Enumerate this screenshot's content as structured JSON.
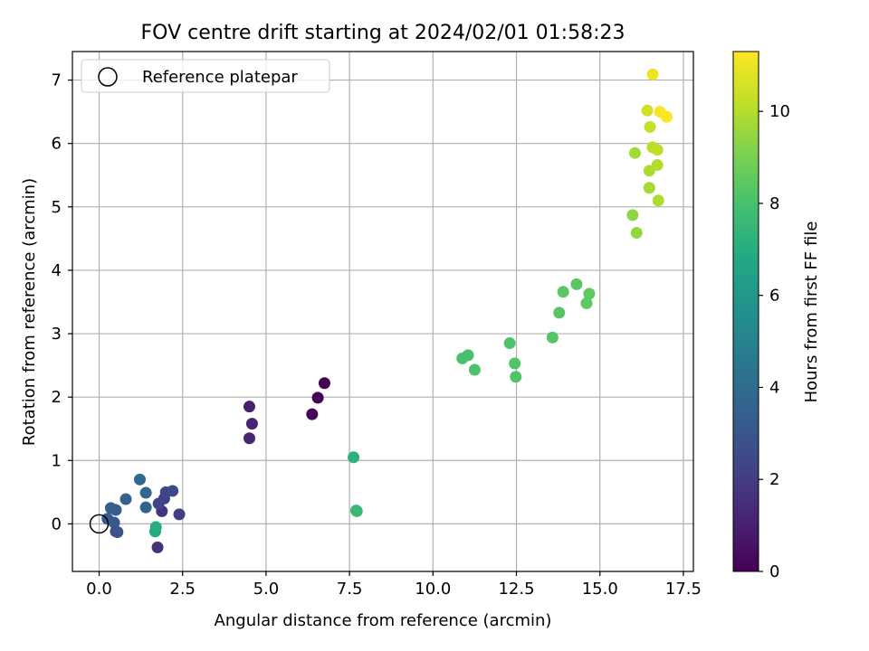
{
  "chart_data": {
    "type": "scatter",
    "title": "FOV centre drift starting at 2024/02/01 01:58:23",
    "xlabel": "Angular distance from reference (arcmin)",
    "ylabel": "Rotation from reference (arcmin)",
    "xlim": [
      -0.8,
      17.8
    ],
    "ylim": [
      -0.75,
      7.45
    ],
    "xticks": [
      0.0,
      2.5,
      5.0,
      7.5,
      10.0,
      12.5,
      15.0,
      17.5
    ],
    "xtick_labels": [
      "0.0",
      "2.5",
      "5.0",
      "7.5",
      "10.0",
      "12.5",
      "15.0",
      "17.5"
    ],
    "yticks": [
      0,
      1,
      2,
      3,
      4,
      5,
      6,
      7
    ],
    "ytick_labels": [
      "0",
      "1",
      "2",
      "3",
      "4",
      "5",
      "6",
      "7"
    ],
    "grid": true,
    "legend": {
      "placement": "top-left",
      "entries": [
        {
          "label": "Reference platepar",
          "marker": "hollow-circle"
        }
      ]
    },
    "reference_point": {
      "x": 0.0,
      "y": 0.0
    },
    "colorbar": {
      "label": "Hours from first FF file",
      "colormap": "viridis",
      "range": [
        0,
        11.3
      ],
      "ticks": [
        0,
        2,
        4,
        6,
        8,
        10
      ],
      "tick_labels": [
        "0",
        "2",
        "4",
        "6",
        "8",
        "10"
      ]
    },
    "points": [
      {
        "x": 6.75,
        "y": 2.22,
        "c": 0.0
      },
      {
        "x": 6.55,
        "y": 1.99,
        "c": 0.1
      },
      {
        "x": 6.38,
        "y": 1.73,
        "c": 0.2
      },
      {
        "x": 4.5,
        "y": 1.85,
        "c": 1.0
      },
      {
        "x": 4.58,
        "y": 1.58,
        "c": 1.1
      },
      {
        "x": 4.5,
        "y": 1.35,
        "c": 1.2
      },
      {
        "x": 1.75,
        "y": -0.37,
        "c": 1.6
      },
      {
        "x": 1.88,
        "y": 0.2,
        "c": 1.7
      },
      {
        "x": 2.4,
        "y": 0.15,
        "c": 2.0
      },
      {
        "x": 1.95,
        "y": 0.4,
        "c": 2.1
      },
      {
        "x": 1.78,
        "y": 0.32,
        "c": 2.3
      },
      {
        "x": 2.0,
        "y": 0.5,
        "c": 2.4
      },
      {
        "x": 2.2,
        "y": 0.52,
        "c": 2.5
      },
      {
        "x": 0.55,
        "y": -0.13,
        "c": 2.7
      },
      {
        "x": 0.5,
        "y": -0.12,
        "c": 2.9
      },
      {
        "x": 0.45,
        "y": 0.02,
        "c": 3.0
      },
      {
        "x": 0.25,
        "y": 0.08,
        "c": 3.2
      },
      {
        "x": 0.5,
        "y": 0.22,
        "c": 3.3
      },
      {
        "x": 0.35,
        "y": 0.25,
        "c": 3.4
      },
      {
        "x": 0.8,
        "y": 0.39,
        "c": 3.5
      },
      {
        "x": 1.4,
        "y": 0.26,
        "c": 3.6
      },
      {
        "x": 1.4,
        "y": 0.49,
        "c": 3.7
      },
      {
        "x": 1.22,
        "y": 0.7,
        "c": 3.9
      },
      {
        "x": 1.68,
        "y": -0.12,
        "c": 6.8
      },
      {
        "x": 1.7,
        "y": -0.05,
        "c": 7.0
      },
      {
        "x": 7.62,
        "y": 1.05,
        "c": 7.2
      },
      {
        "x": 7.7,
        "y": 0.21,
        "c": 7.4
      },
      {
        "x": 7.72,
        "y": 0.2,
        "c": 7.5
      },
      {
        "x": 10.88,
        "y": 2.61,
        "c": 8.0
      },
      {
        "x": 11.05,
        "y": 2.66,
        "c": 8.0
      },
      {
        "x": 11.25,
        "y": 2.43,
        "c": 8.1
      },
      {
        "x": 12.3,
        "y": 2.85,
        "c": 8.1
      },
      {
        "x": 12.45,
        "y": 2.53,
        "c": 8.2
      },
      {
        "x": 12.48,
        "y": 2.32,
        "c": 8.2
      },
      {
        "x": 13.58,
        "y": 2.94,
        "c": 8.3
      },
      {
        "x": 13.78,
        "y": 3.33,
        "c": 8.3
      },
      {
        "x": 13.9,
        "y": 3.66,
        "c": 8.4
      },
      {
        "x": 14.3,
        "y": 3.78,
        "c": 8.4
      },
      {
        "x": 14.6,
        "y": 3.48,
        "c": 8.5
      },
      {
        "x": 14.68,
        "y": 3.63,
        "c": 8.5
      },
      {
        "x": 15.98,
        "y": 4.87,
        "c": 9.4
      },
      {
        "x": 16.1,
        "y": 4.59,
        "c": 9.5
      },
      {
        "x": 16.05,
        "y": 5.85,
        "c": 9.7
      },
      {
        "x": 16.48,
        "y": 5.3,
        "c": 9.8
      },
      {
        "x": 16.48,
        "y": 5.57,
        "c": 9.9
      },
      {
        "x": 16.75,
        "y": 5.1,
        "c": 9.9
      },
      {
        "x": 16.72,
        "y": 5.66,
        "c": 10.0
      },
      {
        "x": 16.58,
        "y": 5.94,
        "c": 10.1
      },
      {
        "x": 16.72,
        "y": 5.9,
        "c": 10.2
      },
      {
        "x": 16.5,
        "y": 6.26,
        "c": 10.3
      },
      {
        "x": 16.42,
        "y": 6.52,
        "c": 10.5
      },
      {
        "x": 16.58,
        "y": 7.09,
        "c": 11.0
      },
      {
        "x": 16.8,
        "y": 6.5,
        "c": 11.2
      },
      {
        "x": 17.0,
        "y": 6.42,
        "c": 11.3
      }
    ]
  }
}
